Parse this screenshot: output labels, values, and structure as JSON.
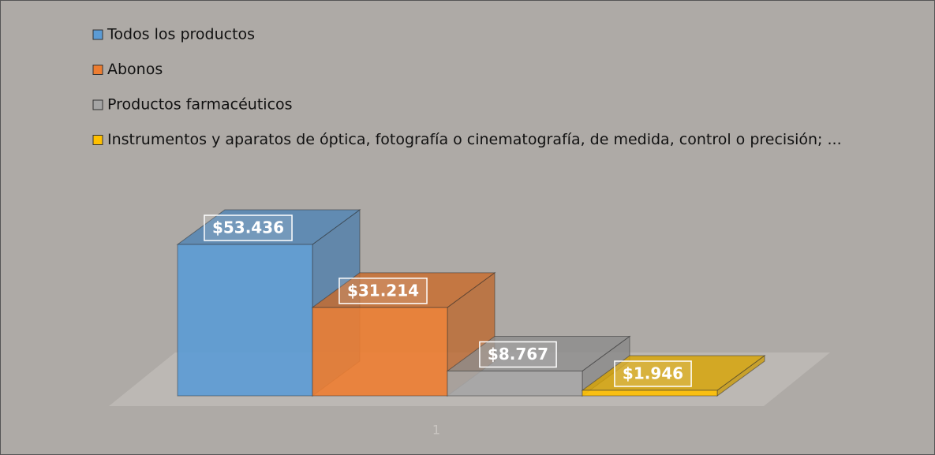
{
  "chart_data": {
    "type": "bar3d",
    "categories": [
      "1"
    ],
    "series": [
      {
        "name": "Todos los productos",
        "color": "#5b9bd5",
        "values": [
          53436
        ],
        "value_labels": [
          "$53.436"
        ]
      },
      {
        "name": "Abonos",
        "color": "#ed7d31",
        "values": [
          31214
        ],
        "value_labels": [
          "$31.214"
        ]
      },
      {
        "name": "Productos farmacéuticos",
        "color": "#a5a5a5",
        "values": [
          8767
        ],
        "value_labels": [
          "$8.767"
        ]
      },
      {
        "name": "Instrumentos y aparatos de óptica, fotografía o cinematografía, de medida, control o precisión; ...",
        "color": "#ffc000",
        "values": [
          1946
        ],
        "value_labels": [
          "$1.946"
        ]
      }
    ],
    "legend": "top-left"
  }
}
